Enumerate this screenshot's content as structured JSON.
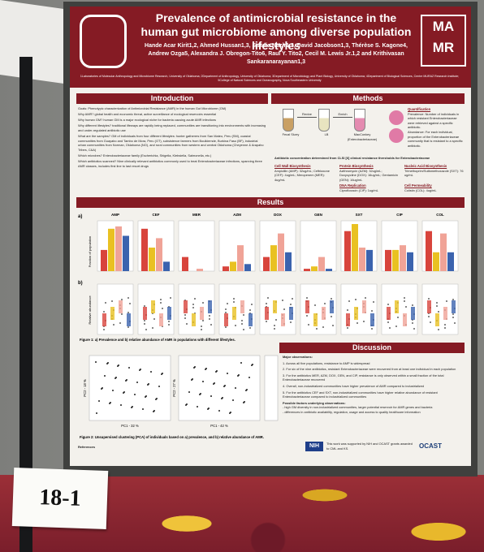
{
  "poster": {
    "title": "Prevalence of antimicrobial resistance in the human gut microbiome among diverse population lifestyles",
    "authors": "Hande Acar Kirit1,2, Ahmed Hussan1,3, Saadia Nazir1,3, David Jacobson1,3, Thérèse S. Kagone4, Andrew Ozga5, Alexandra J. Obregon-Tito6, Raul Y. Tito2, Cecil M. Lewis Jr.1,2 and Krithivasan Sankaranarayanan1,3",
    "affiliations": "1Laboratories of Molecular Anthropology and Microbiome Research, University of Oklahoma; 2Department of Anthropology, University of Oklahoma; 3Department of Microbiology and Plant Biology, University of Oklahoma; 4Department of Biological Sciences, Centre MURAZ Research Institute; 5College of Natural Sciences and Oceanography, Nova Southeastern University",
    "lab_logo": [
      "MA",
      "MR"
    ],
    "introduction": {
      "heading": "Introduction",
      "paragraphs": [
        "Goals: Phenotypic characterization of Antimicrobial Resistance (AMR) in the human Gut Microbiome (GM)",
        "Why AMR? global health and economic threat, active surveillance of ecological reservoirs essential",
        "Why human GM? human GM is a major ecological niche for bacteria causing acute AMR infections",
        "Why different lifestyles? traditional lifeways are rapidly being replaced, communities are transitioning into environments with increasing and under-regulated antibiotic use",
        "What are the samples? GM of individuals from four different lifestyles: hunter gatherers from San Mateo, Peru (SM), coastal communities from Guayabo and Tambo de Mora, Peru (GT), subsistence farmers from Boulkiemde, Burkina Faso (BF), industrial urban communities from Norman, Oklahoma (NO), and rural communities from western and central Oklahoma (Cheyenne & Arapaho Tribes, C&A)",
        "Which microbes? Enterobacteriaceae family (Escherichia, Shigella, Klebsiella, Salmonella, etc.)",
        "Which antibiotics scanned? Nine clinically relevant antibiotics commonly used to treat Enterobacteriaceae infections, spanning three AMR classes, includes first line to last resort drugs"
      ]
    },
    "methods": {
      "heading": "Methods",
      "steps": [
        "Fecal Slurry",
        "LB",
        "MacConkey (Enterobacteriaceae)"
      ],
      "arrows": [
        "Revive",
        "Enrich"
      ],
      "quantification": {
        "heading": "Quantification",
        "prevalence": "Prevalence: Number of individuals in which resistant Enterobacteriaceae were retrieved against a specific antibiotic.",
        "abundance": "Abundance: For each individual, proportion of the Enterobacteriaceae community that is resistant to a specific antibiotic."
      },
      "threshold_note": "Antibiotic concentration determined from CLSI [6] clinical resistance thresholds for Enterobacteriaceae",
      "classes": [
        {
          "name": "Cell Wall Biosynthesis",
          "drugs": "Ampicillin (AMP): 32ug/mL; Ceftriaxone (CEF): 4ug/mL; Meropenem (MER): 4ug/mL"
        },
        {
          "name": "Protein Biosynthesis",
          "drugs": "Azithromycin (AZM): 32ug/mL; Doxycycline (DOX): 16ug/mL; Gentamicin (GEN): 16ug/mL"
        },
        {
          "name": "Nucleic Acid Biosynthesis",
          "drugs": "Trimethoprim/Sulfamethoxazole (SXT): 76 ug/mL"
        },
        {
          "name": "DNA Replication",
          "drugs": "Ciprofloxacin (CIP): 1ug/mL"
        },
        {
          "name": "Cell Permeability",
          "drugs": "Colistin (COL): 4ug/mL"
        }
      ]
    },
    "results": {
      "heading": "Results",
      "panel_a": {
        "label": "a)",
        "y_label": "Fraction of population",
        "colors": [
          "#d8443c",
          "#e9c122",
          "#f0a397",
          "#3b63ae"
        ],
        "antibiotics": [
          {
            "name": "AMP",
            "values": [
              0.45,
              0.9,
              0.95,
              0.75
            ]
          },
          {
            "name": "CEF",
            "values": [
              0.9,
              0.5,
              0.7,
              0.2
            ]
          },
          {
            "name": "MER",
            "values": [
              0.3,
              0,
              0.05,
              0
            ]
          },
          {
            "name": "AZM",
            "values": [
              0.1,
              0.2,
              0.55,
              0.15
            ]
          },
          {
            "name": "DOX",
            "values": [
              0.3,
              0.55,
              0.8,
              0.4
            ]
          },
          {
            "name": "GEN",
            "values": [
              0.05,
              0.1,
              0.3,
              0.05
            ]
          },
          {
            "name": "SXT",
            "values": [
              0.85,
              1,
              0.5,
              0.45
            ]
          },
          {
            "name": "CIP",
            "values": [
              0.45,
              0.45,
              0.55,
              0.4
            ]
          },
          {
            "name": "COL",
            "values": [
              0.85,
              0.4,
              0.8,
              0.4
            ]
          }
        ]
      },
      "panel_b": {
        "label": "b)",
        "y_label": "Relative abundance"
      },
      "figure1_caption": "Figure 1: a) Prevalence and b) relative abundance of AMR in populations with different lifestyles.",
      "pca": {
        "axes": [
          "PC1 - 32 %",
          "PC2 - 18 %",
          "PC1 - 42 %",
          "PC2 - 27 %"
        ]
      },
      "figure2_caption": "Figure 2: Unsupervised clustering (PCA) of individuals based on a) prevalence, and b) relative abundance of AMR."
    },
    "discussion": {
      "heading": "Discussion",
      "subheading": "Major observations:",
      "observations": [
        "1. Across all five populations, resistance to AMP is widespread",
        "2. For six of the nine antibiotics, resistant Enterobacteriaceae were recovered from at least one individual in each population",
        "3. For the antibiotics MER, AZM, DOX, GEN, and CIP, resistance is only observed within a small fraction of the total Enterobacteriaceae recovered",
        "4. Overall, non-industrialized communities have higher prevalence of AMR compared to industrialized",
        "5. For the antibiotics CEF and SXT, non-industrialized communities have higher relative abundance of resistant Enterobacteriaceae compared to industrialized communities"
      ],
      "factors_heading": "Possible factors underlying observations:",
      "factors": [
        "- high GM diversity in non-industrialized communities, larger potential reservoir for AMR genes and bacteria",
        "- differences in antibiotic availability, regulation, usage and access to quality healthcare information"
      ]
    },
    "footer": {
      "references": "References",
      "funding": "This work was supported by NIH and OCAST grants awarded to CML and KS.",
      "nih": "NIH",
      "ocast": "OCAST"
    }
  },
  "booth_sign": "18-1"
}
